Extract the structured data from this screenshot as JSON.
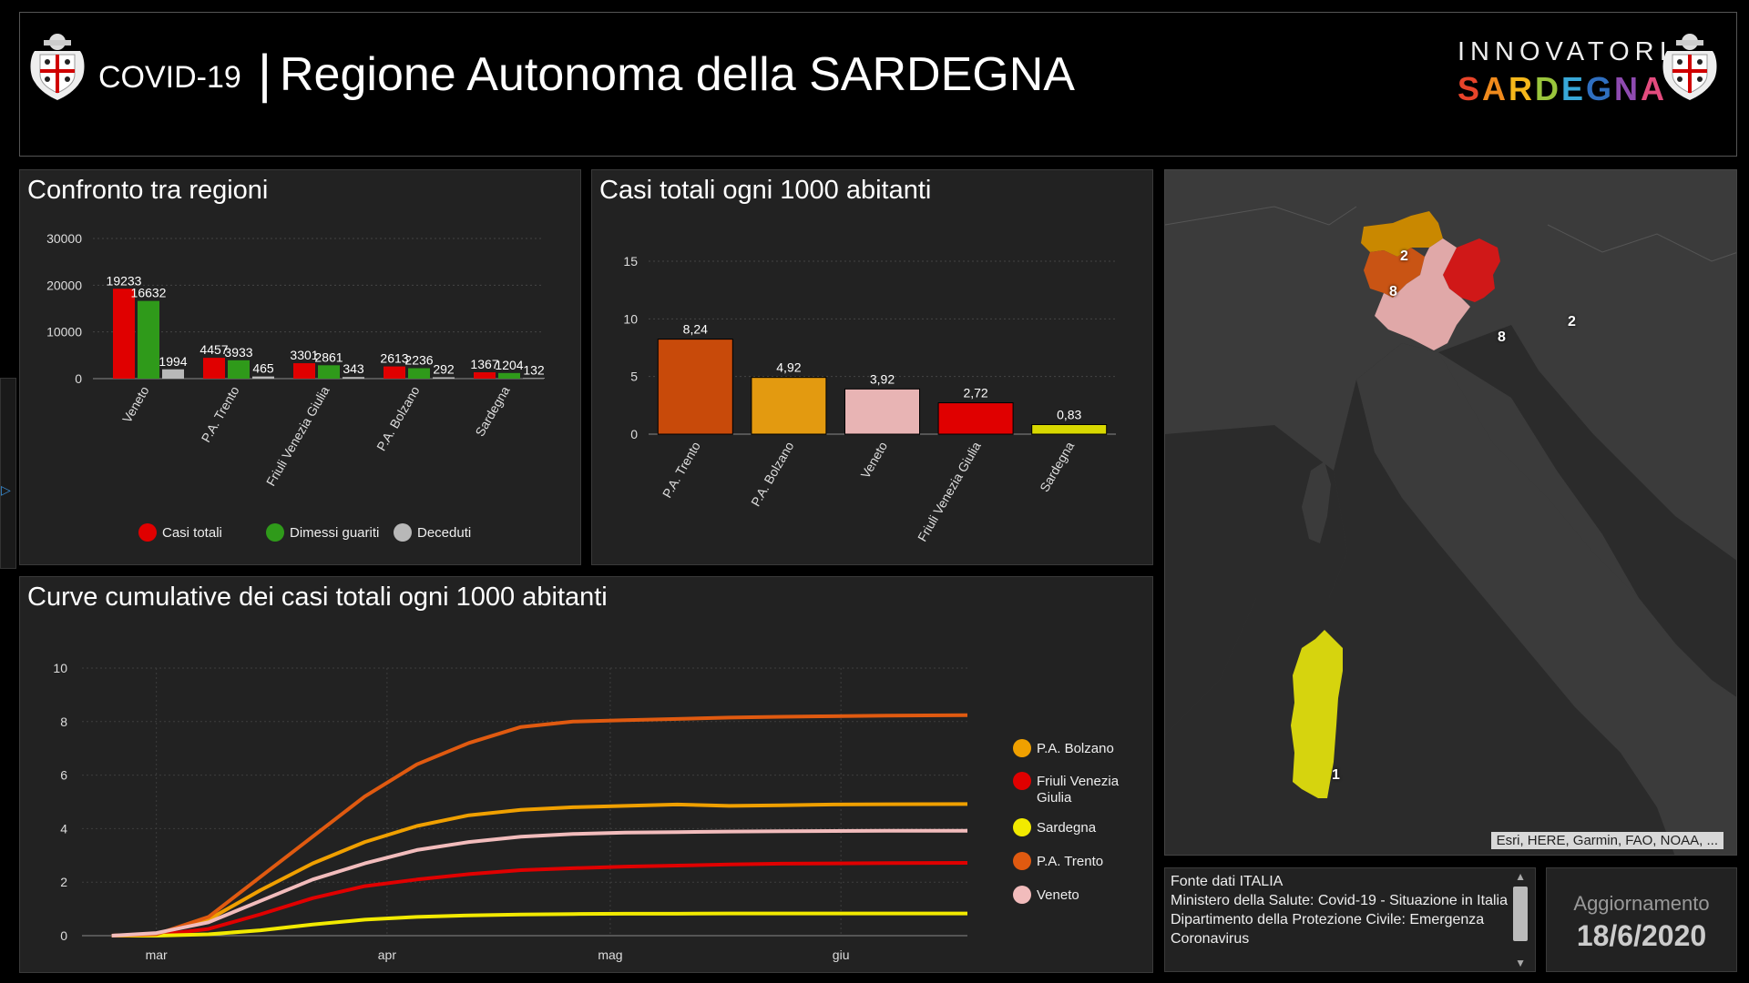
{
  "header": {
    "covid_label": "COVID-19",
    "separator": "|",
    "region_title": "Regione Autonoma della SARDEGNA",
    "brand_top": "INNOVATORI",
    "brand_bottom_letters": [
      {
        "ch": "S",
        "color": "#e8442a"
      },
      {
        "ch": "A",
        "color": "#f08a1c"
      },
      {
        "ch": "R",
        "color": "#f5b71b"
      },
      {
        "ch": "D",
        "color": "#9ac53c"
      },
      {
        "ch": "E",
        "color": "#38a8d8"
      },
      {
        "ch": "G",
        "color": "#2f6fc0"
      },
      {
        "ch": "N",
        "color": "#8e4ab0"
      },
      {
        "ch": "A",
        "color": "#e34b7e"
      }
    ]
  },
  "colors": {
    "casi_totali": "#e00000",
    "dimessi_guariti": "#2f9a1a",
    "deceduti": "#b8b8b8",
    "pa_trento": "#e05a10",
    "pa_bolzano": "#f0a000",
    "veneto": "#f2bcbc",
    "friuli": "#e00000",
    "sardegna": "#f2ea00"
  },
  "panels": {
    "confronto_title": "Confronto tra regioni",
    "casi1000_title": "Casi totali ogni 1000 abitanti",
    "curve_title": "Curve cumulative dei casi totali ogni 1000 abitanti"
  },
  "chart_data": [
    {
      "type": "bar",
      "title": "Confronto tra regioni",
      "categories": [
        "Veneto",
        "P.A. Trento",
        "Friuli Venezia Giulia",
        "P.A. Bolzano",
        "Sardegna"
      ],
      "series": [
        {
          "name": "Casi totali",
          "values": [
            19233,
            4457,
            3301,
            2613,
            1367
          ],
          "labels": [
            "19233",
            "4457",
            "3301",
            "2613",
            "1367"
          ]
        },
        {
          "name": "Dimessi guariti",
          "values": [
            16632,
            3933,
            2861,
            2236,
            1204
          ],
          "labels": [
            "16632",
            "3933",
            "2861",
            "2236",
            "1204"
          ]
        },
        {
          "name": "Deceduti",
          "values": [
            1994,
            465,
            343,
            292,
            132
          ],
          "labels": [
            "1994",
            "465",
            "343",
            "292",
            "132"
          ]
        }
      ],
      "ylim": [
        0,
        30000
      ],
      "yticks": [
        "0",
        "10000",
        "20000",
        "30000"
      ],
      "legend_position": "bottom",
      "grid": true
    },
    {
      "type": "bar",
      "title": "Casi totali ogni 1000 abitanti",
      "categories": [
        "P.A. Trento",
        "P.A. Bolzano",
        "Veneto",
        "Friuli Venezia Giulia",
        "Sardegna"
      ],
      "values": [
        8.24,
        4.92,
        3.92,
        2.72,
        0.83
      ],
      "value_labels": [
        "8,24",
        "4,92",
        "3,92",
        "2,72",
        "0,83"
      ],
      "bar_colors": [
        "#c84a0a",
        "#e39a10",
        "#e8b4b4",
        "#e00000",
        "#d8d800"
      ],
      "ylim": [
        0,
        15
      ],
      "yticks": [
        "0",
        "5",
        "10",
        "15"
      ],
      "grid": true
    },
    {
      "type": "line",
      "title": "Curve cumulative dei casi totali ogni 1000 abitanti",
      "x": [
        "2020-02-24",
        "2020-03-01",
        "2020-03-08",
        "2020-03-15",
        "2020-03-22",
        "2020-03-29",
        "2020-04-05",
        "2020-04-12",
        "2020-04-19",
        "2020-04-26",
        "2020-05-03",
        "2020-05-10",
        "2020-05-17",
        "2020-05-24",
        "2020-05-31",
        "2020-06-07",
        "2020-06-18"
      ],
      "xticks": [
        "mar",
        "apr",
        "mag",
        "giu"
      ],
      "xtick_dates": [
        "2020-03-01",
        "2020-04-01",
        "2020-05-01",
        "2020-06-01"
      ],
      "x_range": [
        "2020-02-20",
        "2020-06-18"
      ],
      "ylim": [
        0,
        10
      ],
      "yticks": [
        "0",
        "2",
        "4",
        "6",
        "8",
        "10"
      ],
      "series": [
        {
          "name": "P.A. Bolzano",
          "values": [
            0,
            0.05,
            0.6,
            1.7,
            2.7,
            3.5,
            4.1,
            4.5,
            4.7,
            4.8,
            4.85,
            4.9,
            4.85,
            4.87,
            4.9,
            4.91,
            4.92
          ]
        },
        {
          "name": "Friuli Venezia Giulia",
          "values": [
            0,
            0.02,
            0.25,
            0.8,
            1.4,
            1.85,
            2.1,
            2.3,
            2.45,
            2.52,
            2.58,
            2.62,
            2.66,
            2.69,
            2.7,
            2.71,
            2.72
          ]
        },
        {
          "name": "Sardegna",
          "values": [
            0,
            0,
            0.05,
            0.2,
            0.42,
            0.6,
            0.7,
            0.76,
            0.79,
            0.81,
            0.82,
            0.82,
            0.83,
            0.83,
            0.83,
            0.83,
            0.83
          ]
        },
        {
          "name": "P.A. Trento",
          "values": [
            0,
            0.05,
            0.7,
            2.2,
            3.7,
            5.2,
            6.4,
            7.2,
            7.8,
            8.0,
            8.05,
            8.1,
            8.15,
            8.18,
            8.2,
            8.22,
            8.24
          ]
        },
        {
          "name": "Veneto",
          "values": [
            0,
            0.1,
            0.5,
            1.3,
            2.1,
            2.7,
            3.2,
            3.5,
            3.7,
            3.8,
            3.85,
            3.87,
            3.89,
            3.9,
            3.91,
            3.92,
            3.92
          ]
        }
      ],
      "legend_position": "right",
      "grid": true
    }
  ],
  "map": {
    "attribution": "Esri, HERE, Garmin, FAO, NOAA, ...",
    "regions": [
      {
        "name": "P.A. Bolzano",
        "label": "2",
        "color": "#c98800"
      },
      {
        "name": "P.A. Trento",
        "label": "8",
        "color": "#c95414"
      },
      {
        "name": "Friuli Venezia Giulia",
        "label": "2",
        "color": "#d01818"
      },
      {
        "name": "Veneto",
        "label": "8",
        "color": "#e0a8a8"
      },
      {
        "name": "Sardegna",
        "label": "1",
        "color": "#d6d40e"
      }
    ]
  },
  "source": {
    "lines": [
      "Fonte dati ITALIA",
      "Ministero della Salute: Covid-19 - Situazione in Italia",
      "Dipartimento della Protezione Civile: Emergenza Coronavirus"
    ]
  },
  "update": {
    "label": "Aggiornamento",
    "date": "18/6/2020"
  }
}
